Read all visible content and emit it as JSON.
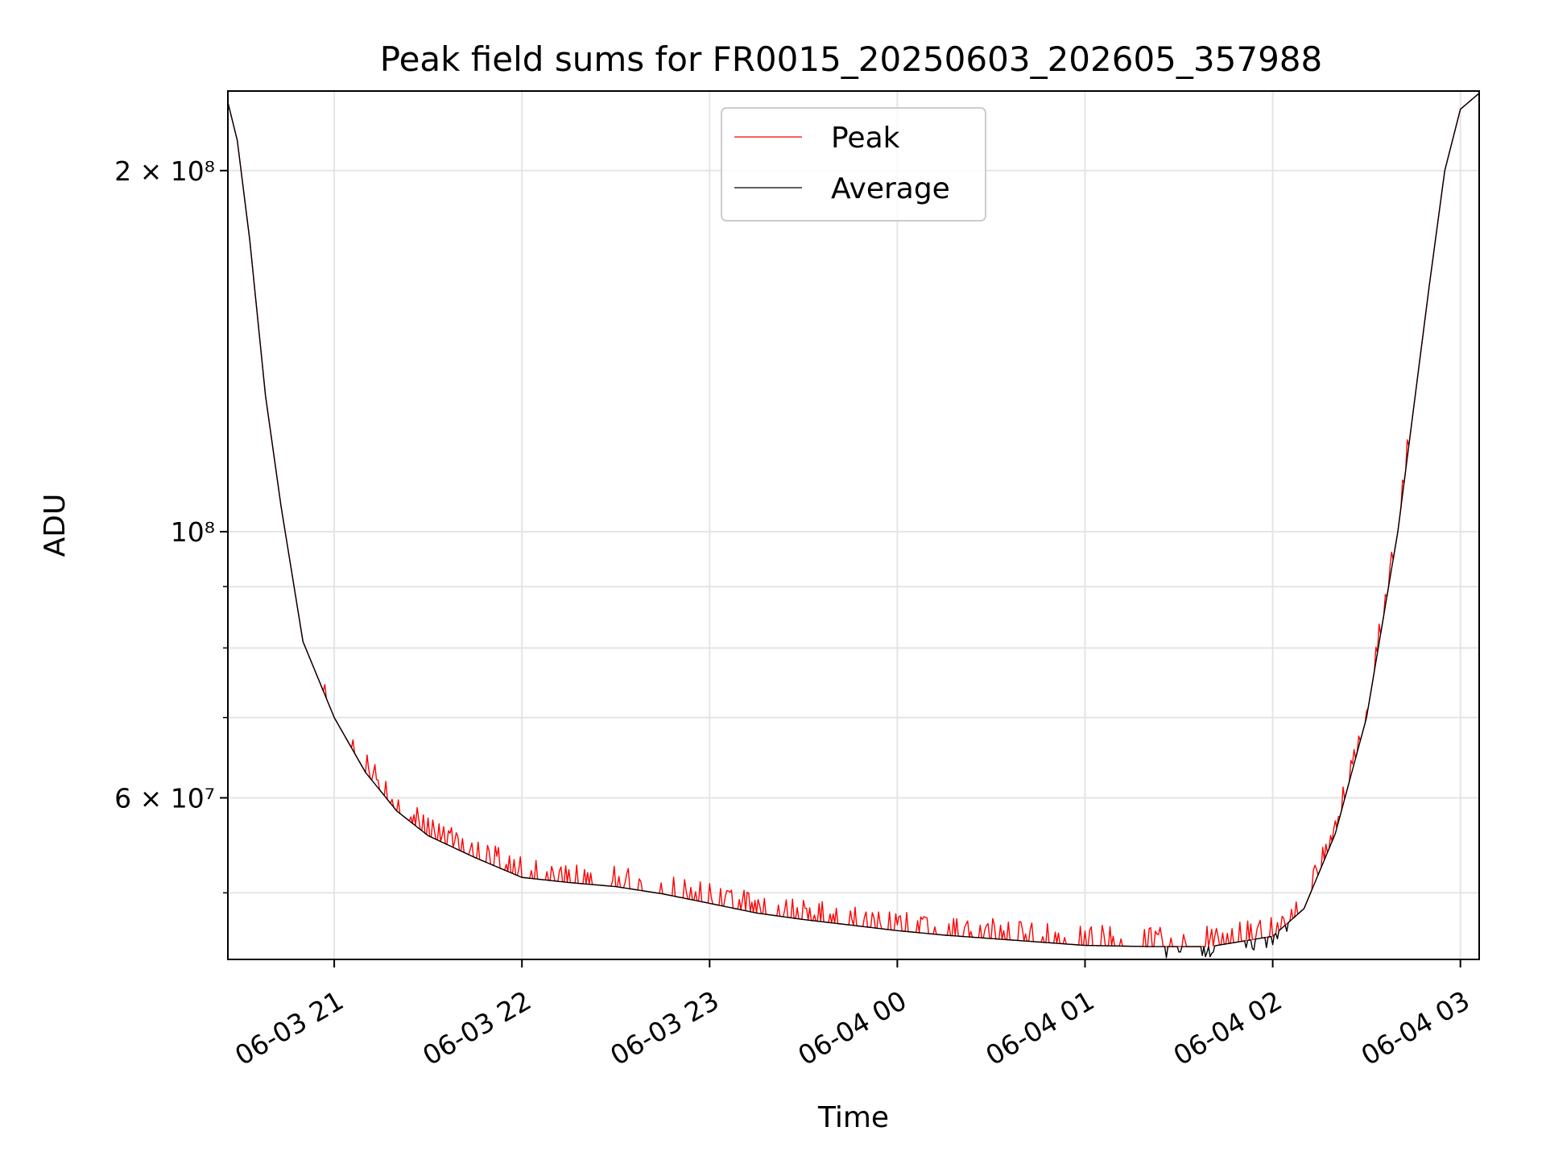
{
  "chart_data": {
    "type": "line",
    "title": "Peak field sums for FR0015_20250603_202605_357988",
    "xlabel": "Time",
    "ylabel": "ADU",
    "yscale": "log",
    "grid": true,
    "legend_position": "top-center",
    "xlim": [
      "2025-06-03 20:26",
      "2025-06-04 03:06"
    ],
    "ylim": [
      44000000,
      233000000
    ],
    "x_ticks": [
      {
        "value": "2025-06-03 21:00",
        "label": "06-03 21"
      },
      {
        "value": "2025-06-03 22:00",
        "label": "06-03 22"
      },
      {
        "value": "2025-06-03 23:00",
        "label": "06-03 23"
      },
      {
        "value": "2025-06-04 00:00",
        "label": "06-04 00"
      },
      {
        "value": "2025-06-04 01:00",
        "label": "06-04 01"
      },
      {
        "value": "2025-06-04 02:00",
        "label": "06-04 02"
      },
      {
        "value": "2025-06-04 03:00",
        "label": "06-04 03"
      }
    ],
    "y_major_ticks": [
      {
        "value": 200000000,
        "label": "2 × 10⁸"
      },
      {
        "value": 100000000,
        "label": "10⁸"
      },
      {
        "value": 60000000,
        "label": "6 × 10⁷"
      }
    ],
    "y_minor_ticks": [
      50000000,
      70000000,
      80000000,
      90000000
    ],
    "series": [
      {
        "name": "Peak",
        "color": "#ff0000",
        "description_of_spikes": "frequent upward spikes of ~1–3% above the average trend",
        "points": [
          [
            "2025-06-03 20:26",
            228000000
          ],
          [
            "2025-06-03 20:29",
            212000000
          ],
          [
            "2025-06-03 20:33",
            175000000
          ],
          [
            "2025-06-03 20:38",
            130000000
          ],
          [
            "2025-06-03 20:43",
            105000000
          ],
          [
            "2025-06-03 20:50",
            81000000
          ],
          [
            "2025-06-03 21:00",
            70000000
          ],
          [
            "2025-06-03 21:10",
            63000000
          ],
          [
            "2025-06-03 21:20",
            58500000
          ],
          [
            "2025-06-03 21:30",
            55800000
          ],
          [
            "2025-06-03 21:45",
            53500000
          ],
          [
            "2025-06-03 22:00",
            51500000
          ],
          [
            "2025-06-03 22:15",
            51000000
          ],
          [
            "2025-06-03 22:30",
            50600000
          ],
          [
            "2025-06-03 22:45",
            49900000
          ],
          [
            "2025-06-03 23:00",
            49000000
          ],
          [
            "2025-06-03 23:15",
            48100000
          ],
          [
            "2025-06-03 23:30",
            47500000
          ],
          [
            "2025-06-03 23:45",
            47000000
          ],
          [
            "2025-06-04 00:00",
            46500000
          ],
          [
            "2025-06-04 00:15",
            46100000
          ],
          [
            "2025-06-04 00:30",
            45800000
          ],
          [
            "2025-06-04 00:45",
            45500000
          ],
          [
            "2025-06-04 01:00",
            45200000
          ],
          [
            "2025-06-04 01:20",
            45100000
          ],
          [
            "2025-06-04 01:40",
            45100000
          ],
          [
            "2025-06-04 02:00",
            46000000
          ],
          [
            "2025-06-04 02:10",
            48500000
          ],
          [
            "2025-06-04 02:20",
            56000000
          ],
          [
            "2025-06-04 02:30",
            70000000
          ],
          [
            "2025-06-04 02:40",
            100000000
          ],
          [
            "2025-06-04 02:50",
            160000000
          ],
          [
            "2025-06-04 02:55",
            200000000
          ],
          [
            "2025-06-04 03:00",
            225000000
          ],
          [
            "2025-06-04 03:06",
            232000000
          ]
        ]
      },
      {
        "name": "Average",
        "color": "#000000",
        "points": [
          [
            "2025-06-03 20:26",
            228000000
          ],
          [
            "2025-06-03 20:29",
            212000000
          ],
          [
            "2025-06-03 20:33",
            175000000
          ],
          [
            "2025-06-03 20:38",
            130000000
          ],
          [
            "2025-06-03 20:43",
            105000000
          ],
          [
            "2025-06-03 20:50",
            81000000
          ],
          [
            "2025-06-03 21:00",
            70000000
          ],
          [
            "2025-06-03 21:10",
            63000000
          ],
          [
            "2025-06-03 21:20",
            58500000
          ],
          [
            "2025-06-03 21:30",
            55800000
          ],
          [
            "2025-06-03 21:45",
            53500000
          ],
          [
            "2025-06-03 22:00",
            51500000
          ],
          [
            "2025-06-03 22:15",
            51000000
          ],
          [
            "2025-06-03 22:30",
            50600000
          ],
          [
            "2025-06-03 22:45",
            49900000
          ],
          [
            "2025-06-03 23:00",
            49000000
          ],
          [
            "2025-06-03 23:15",
            48100000
          ],
          [
            "2025-06-03 23:30",
            47500000
          ],
          [
            "2025-06-03 23:45",
            47000000
          ],
          [
            "2025-06-04 00:00",
            46500000
          ],
          [
            "2025-06-04 00:15",
            46100000
          ],
          [
            "2025-06-04 00:30",
            45800000
          ],
          [
            "2025-06-04 00:45",
            45500000
          ],
          [
            "2025-06-04 01:00",
            45200000
          ],
          [
            "2025-06-04 01:20",
            45100000
          ],
          [
            "2025-06-04 01:40",
            45100000
          ],
          [
            "2025-06-04 02:00",
            46000000
          ],
          [
            "2025-06-04 02:10",
            48500000
          ],
          [
            "2025-06-04 02:20",
            56000000
          ],
          [
            "2025-06-04 02:30",
            70000000
          ],
          [
            "2025-06-04 02:40",
            100000000
          ],
          [
            "2025-06-04 02:50",
            160000000
          ],
          [
            "2025-06-04 02:55",
            200000000
          ],
          [
            "2025-06-04 03:00",
            225000000
          ],
          [
            "2025-06-04 03:06",
            232000000
          ]
        ]
      }
    ]
  }
}
